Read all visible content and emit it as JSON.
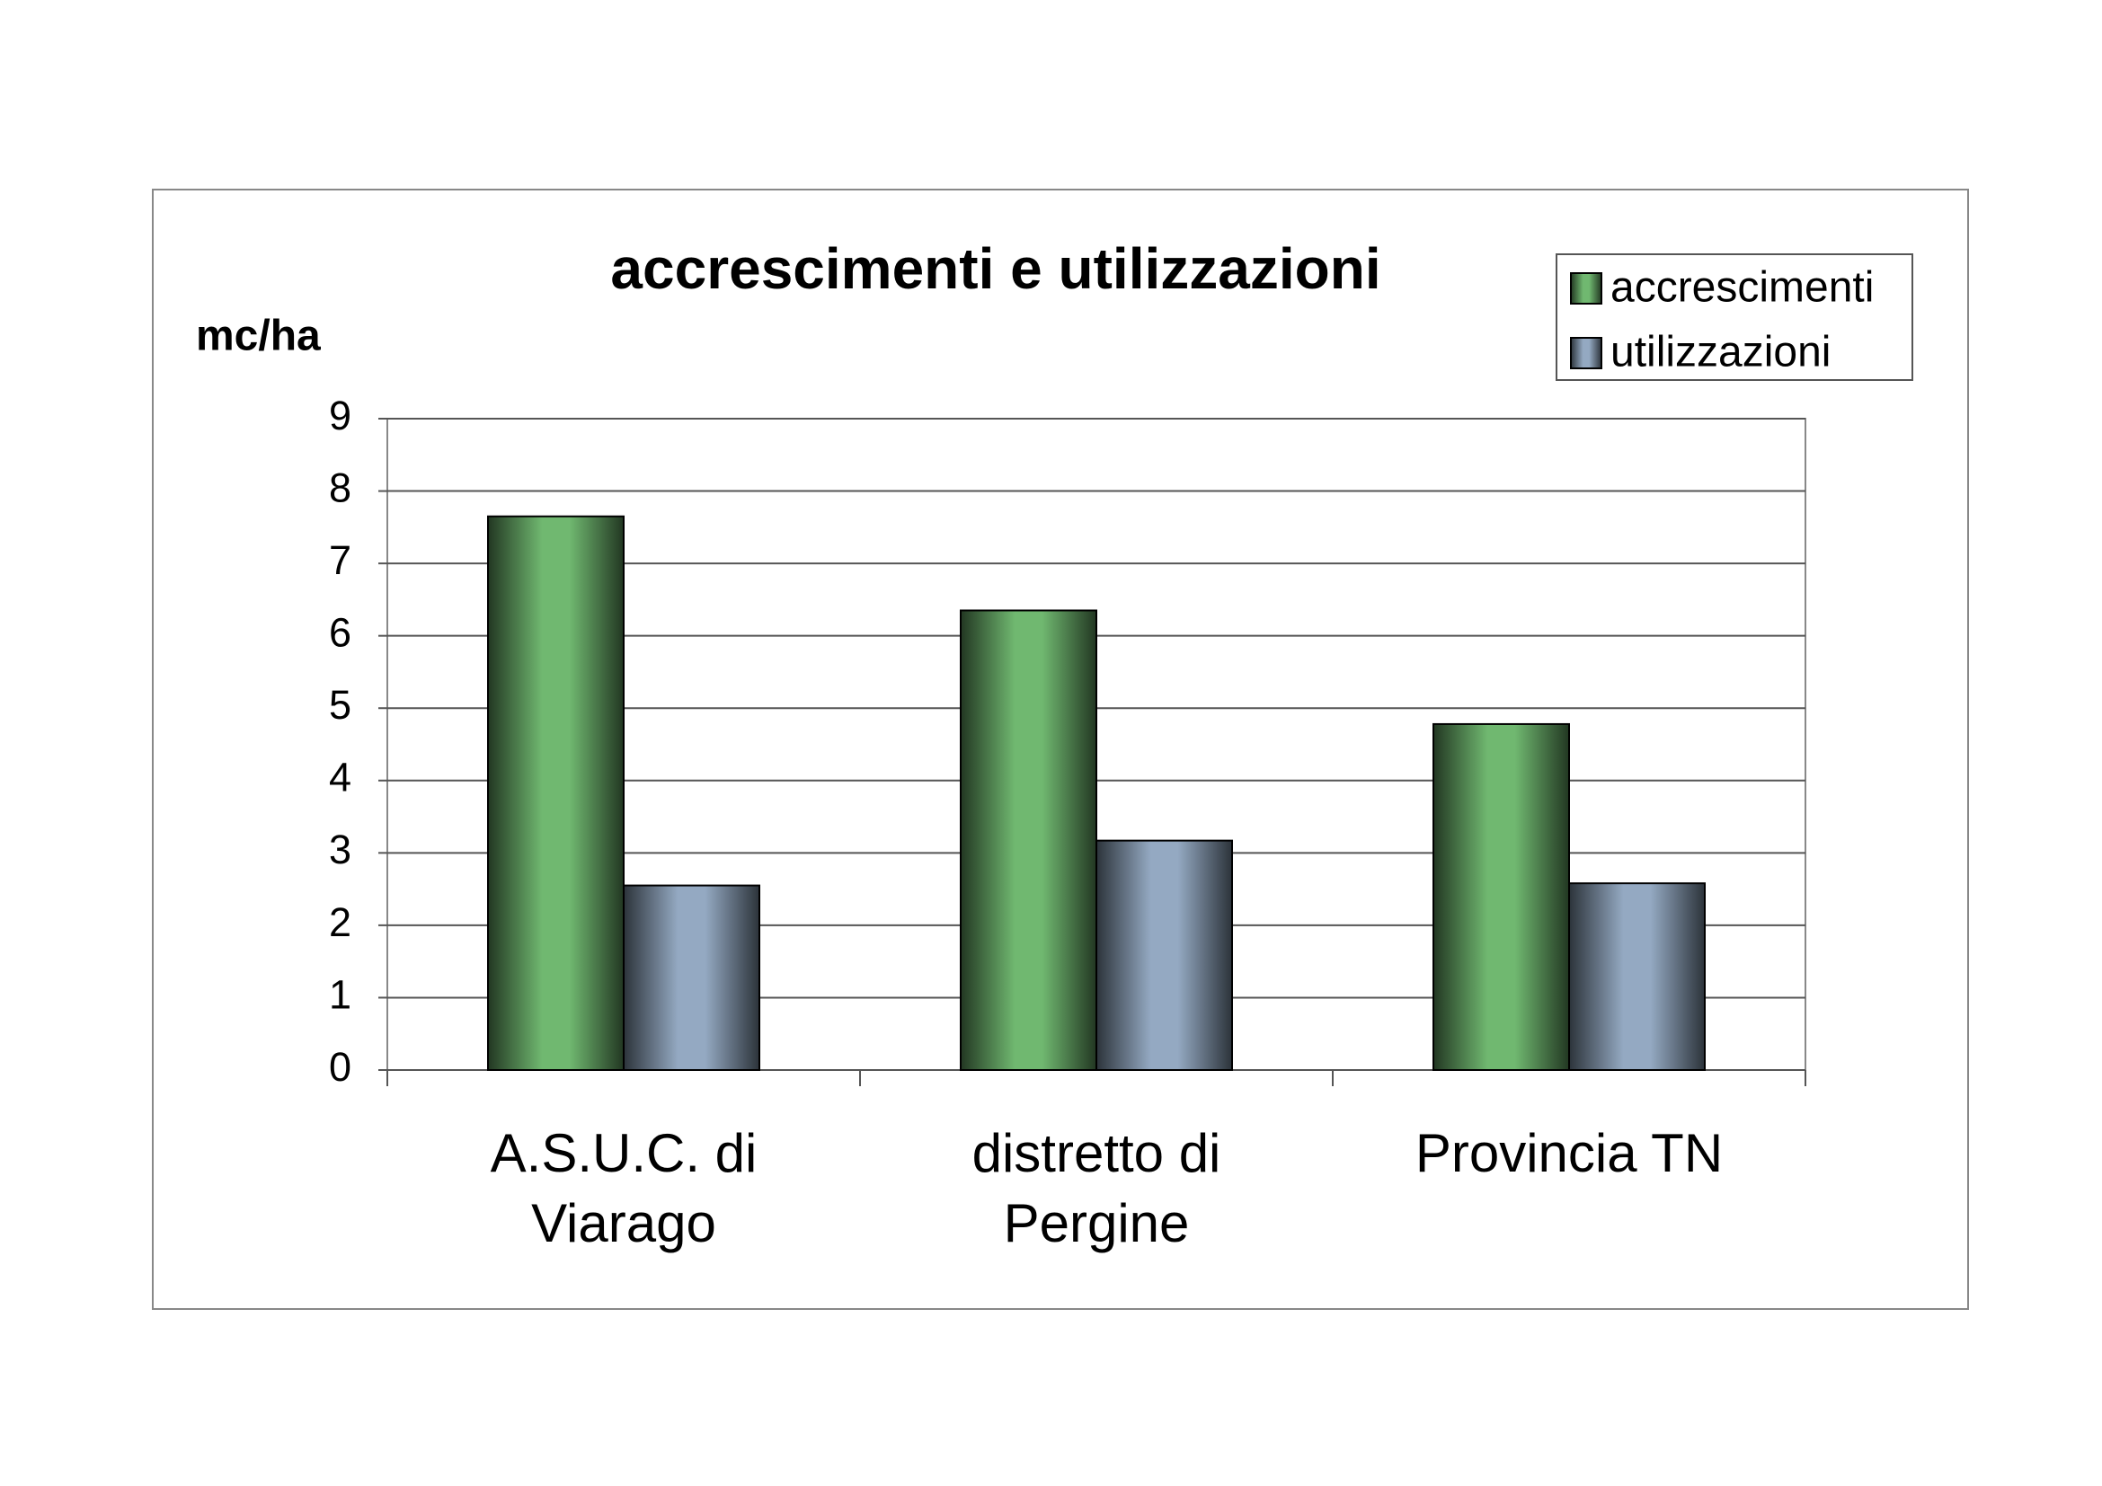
{
  "chart_data": {
    "type": "bar",
    "title": "accrescimenti e utilizzazioni",
    "y_label": "mc/ha",
    "categories": [
      "A.S.U.C. di Viarago",
      "distretto di Pergine",
      "Provincia TN"
    ],
    "series": [
      {
        "name": "accrescimenti",
        "color": "#70b870",
        "values": [
          7.65,
          6.35,
          4.78
        ]
      },
      {
        "name": "utilizzazioni",
        "color": "#94a9c2",
        "values": [
          2.55,
          3.17,
          2.58
        ]
      }
    ],
    "ylim": [
      0,
      9
    ],
    "yticks": [
      0,
      1,
      2,
      3,
      4,
      5,
      6,
      7,
      8,
      9
    ],
    "grid": true,
    "legend": "top-right"
  }
}
